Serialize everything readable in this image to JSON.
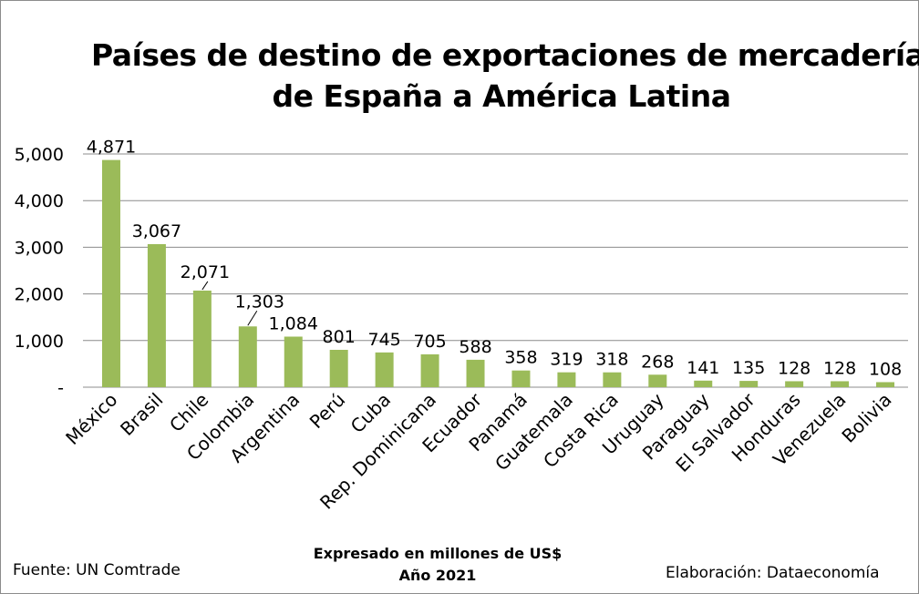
{
  "chart_data": {
    "type": "bar",
    "title": [
      "Países de destino de exportaciones de mercaderías",
      "de España a América Latina"
    ],
    "categories": [
      "México",
      "Brasil",
      "Chile",
      "Colombia",
      "Argentina",
      "Perú",
      "Cuba",
      "Rep. Dominicana",
      "Ecuador",
      "Panamá",
      "Guatemala",
      "Costa Rica",
      "Uruguay",
      "Paraguay",
      "El Salvador",
      "Honduras",
      "Venezuela",
      "Bolivia"
    ],
    "values": [
      4871,
      3067,
      2071,
      1303,
      1084,
      801,
      745,
      705,
      588,
      358,
      319,
      318,
      268,
      141,
      135,
      128,
      128,
      108
    ],
    "value_labels": [
      "4,871",
      "3,067",
      "2,071",
      "1,303",
      "1,084",
      "801",
      "745",
      "705",
      "588",
      "358",
      "319",
      "318",
      "268",
      "141",
      "135",
      "128",
      "128",
      "108"
    ],
    "y_ticks": [
      "-",
      "1,000",
      "2,000",
      "3,000",
      "4,000",
      "5,000"
    ],
    "ylim": [
      0,
      5000
    ],
    "grid": true,
    "bar_color": "#9bbb59",
    "gridline_color": "#8c8c8c"
  },
  "footer": {
    "source": "Fuente: UN Comtrade",
    "caption_line1": "Expresado en millones de US$",
    "caption_line2": "Año 2021",
    "credit": "Elaboración: Dataeconomía"
  }
}
